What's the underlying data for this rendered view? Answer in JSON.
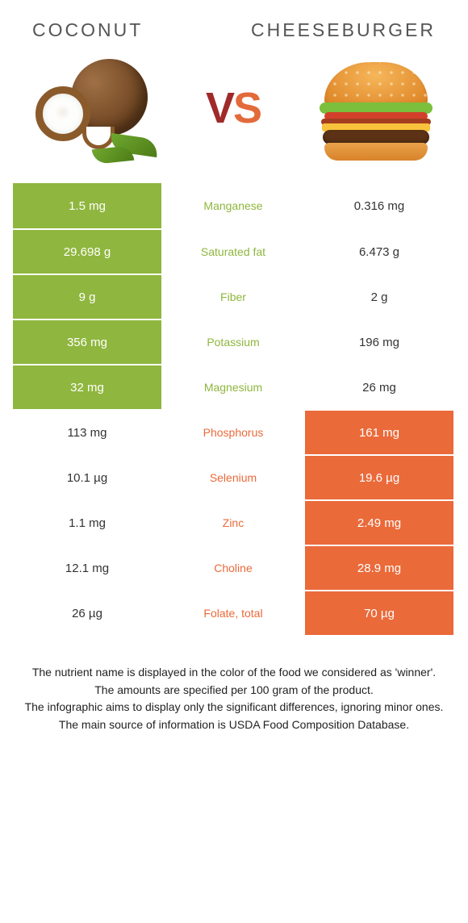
{
  "header": {
    "left": "Coconut",
    "right": "Cheeseburger"
  },
  "vs": {
    "v": "V",
    "s": "S"
  },
  "colors": {
    "left_bg_green": "#8fb63e",
    "left_bg_white": "#ffffff",
    "right_bg_orange": "#ea6a3a",
    "right_bg_white": "#ffffff",
    "mid_text_green": "#8fb63e",
    "mid_text_orange": "#ea6a3a",
    "left_text_on_white": "#333333",
    "right_text_on_white": "#333333"
  },
  "rows": [
    {
      "left_val": "1.5 mg",
      "nutrient": "Manganese",
      "right_val": "0.316 mg",
      "winner": "left"
    },
    {
      "left_val": "29.698 g",
      "nutrient": "Saturated fat",
      "right_val": "6.473 g",
      "winner": "left"
    },
    {
      "left_val": "9 g",
      "nutrient": "Fiber",
      "right_val": "2 g",
      "winner": "left"
    },
    {
      "left_val": "356 mg",
      "nutrient": "Potassium",
      "right_val": "196 mg",
      "winner": "left"
    },
    {
      "left_val": "32 mg",
      "nutrient": "Magnesium",
      "right_val": "26 mg",
      "winner": "left"
    },
    {
      "left_val": "113 mg",
      "nutrient": "Phosphorus",
      "right_val": "161 mg",
      "winner": "right"
    },
    {
      "left_val": "10.1 µg",
      "nutrient": "Selenium",
      "right_val": "19.6 µg",
      "winner": "right"
    },
    {
      "left_val": "1.1 mg",
      "nutrient": "Zinc",
      "right_val": "2.49 mg",
      "winner": "right"
    },
    {
      "left_val": "12.1 mg",
      "nutrient": "Choline",
      "right_val": "28.9 mg",
      "winner": "right"
    },
    {
      "left_val": "26 µg",
      "nutrient": "Folate, total",
      "right_val": "70 µg",
      "winner": "right"
    }
  ],
  "footer": {
    "line1": "The nutrient name is displayed in the color of the food we considered as 'winner'.",
    "line2": "The amounts are specified per 100 gram of the product.",
    "line3": "The infographic aims to display only the significant differences, ignoring minor ones.",
    "line4": "The main source of information is USDA Food Composition Database."
  }
}
